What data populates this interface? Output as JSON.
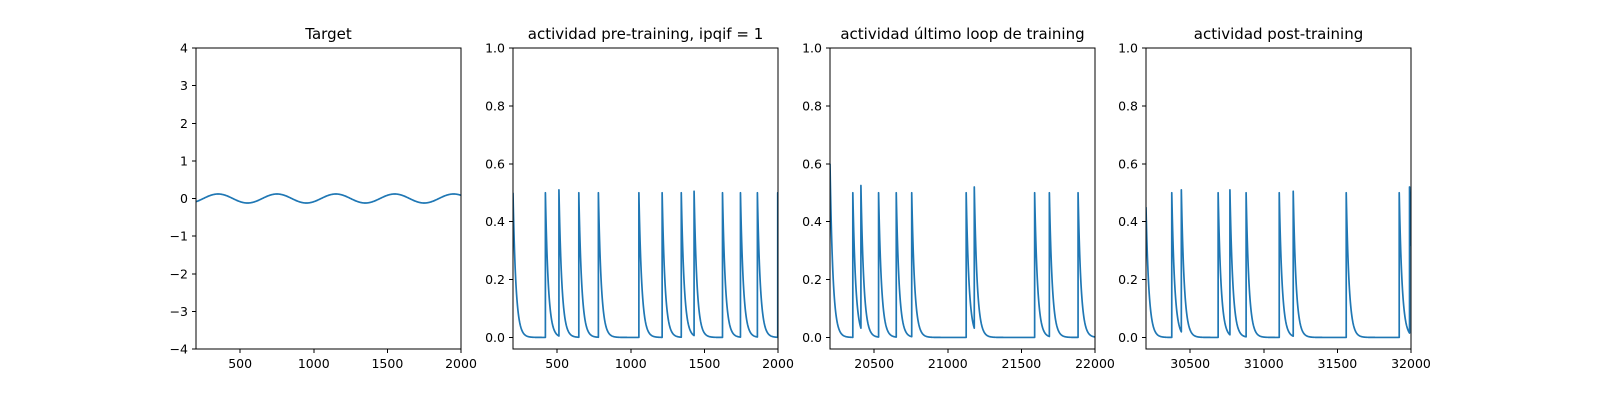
{
  "chart_data": [
    {
      "type": "line",
      "title": "Target",
      "xlim": [
        200,
        2000
      ],
      "ylim": [
        -4,
        4
      ],
      "xticks": [
        500,
        1000,
        1500,
        2000
      ],
      "yticks": [
        -4,
        -3,
        -2,
        -1,
        0,
        1,
        2,
        3,
        4
      ],
      "series": [
        {
          "color": "#1f77b4",
          "curve": {
            "kind": "sine",
            "amplitude": 0.12,
            "period": 400,
            "peak_at": 350,
            "x_range": [
              200,
              2000
            ]
          }
        }
      ]
    },
    {
      "type": "line",
      "title": "actividad pre-training, ipqif = 1",
      "xlim": [
        200,
        2000
      ],
      "ylim": [
        -0.04,
        1.0
      ],
      "xticks": [
        500,
        1000,
        1500,
        2000
      ],
      "yticks": [
        0.0,
        0.2,
        0.4,
        0.6,
        0.8,
        1.0
      ],
      "series": [
        {
          "color": "#1f77b4",
          "curve": {
            "kind": "spike_decay",
            "x_range": [
              200,
              2000
            ],
            "decay_tau": 20,
            "baseline": 0.0,
            "initial_value": 0.5,
            "spikes": [
              {
                "x": 420,
                "y": 0.5
              },
              {
                "x": 512,
                "y": 0.51
              },
              {
                "x": 647,
                "y": 0.5
              },
              {
                "x": 780,
                "y": 0.5
              },
              {
                "x": 1055,
                "y": 0.5
              },
              {
                "x": 1213,
                "y": 0.5
              },
              {
                "x": 1343,
                "y": 0.5
              },
              {
                "x": 1430,
                "y": 0.505
              },
              {
                "x": 1623,
                "y": 0.5
              },
              {
                "x": 1745,
                "y": 0.5
              },
              {
                "x": 1860,
                "y": 0.5
              },
              {
                "x": 1998,
                "y": 0.5
              }
            ]
          }
        }
      ]
    },
    {
      "type": "line",
      "title": "actividad último loop de training",
      "xlim": [
        20200,
        22000
      ],
      "ylim": [
        -0.04,
        1.0
      ],
      "xticks": [
        20500,
        21000,
        21500,
        22000
      ],
      "yticks": [
        0.0,
        0.2,
        0.4,
        0.6,
        0.8,
        1.0
      ],
      "series": [
        {
          "color": "#1f77b4",
          "curve": {
            "kind": "spike_decay",
            "x_range": [
              20200,
              22000
            ],
            "decay_tau": 20,
            "baseline": 0.0,
            "initial_value": 0.6,
            "spikes": [
              {
                "x": 20355,
                "y": 0.5
              },
              {
                "x": 20410,
                "y": 0.525
              },
              {
                "x": 20530,
                "y": 0.5
              },
              {
                "x": 20650,
                "y": 0.5
              },
              {
                "x": 20755,
                "y": 0.5
              },
              {
                "x": 21125,
                "y": 0.5
              },
              {
                "x": 21180,
                "y": 0.52
              },
              {
                "x": 21590,
                "y": 0.5
              },
              {
                "x": 21690,
                "y": 0.5
              },
              {
                "x": 21885,
                "y": 0.5
              }
            ]
          }
        }
      ]
    },
    {
      "type": "line",
      "title": "actividad post-training",
      "xlim": [
        30200,
        32000
      ],
      "ylim": [
        -0.04,
        1.0
      ],
      "xticks": [
        30500,
        31000,
        31500,
        32000
      ],
      "yticks": [
        0.0,
        0.2,
        0.4,
        0.6,
        0.8,
        1.0
      ],
      "series": [
        {
          "color": "#1f77b4",
          "curve": {
            "kind": "spike_decay",
            "x_range": [
              30200,
              32000
            ],
            "decay_tau": 20,
            "baseline": 0.0,
            "initial_value": 0.45,
            "spikes": [
              {
                "x": 30375,
                "y": 0.5
              },
              {
                "x": 30440,
                "y": 0.51
              },
              {
                "x": 30690,
                "y": 0.5
              },
              {
                "x": 30770,
                "y": 0.51
              },
              {
                "x": 30880,
                "y": 0.5
              },
              {
                "x": 31105,
                "y": 0.5
              },
              {
                "x": 31200,
                "y": 0.505
              },
              {
                "x": 31560,
                "y": 0.5
              },
              {
                "x": 31920,
                "y": 0.5
              },
              {
                "x": 31990,
                "y": 0.52
              }
            ]
          }
        }
      ]
    }
  ]
}
